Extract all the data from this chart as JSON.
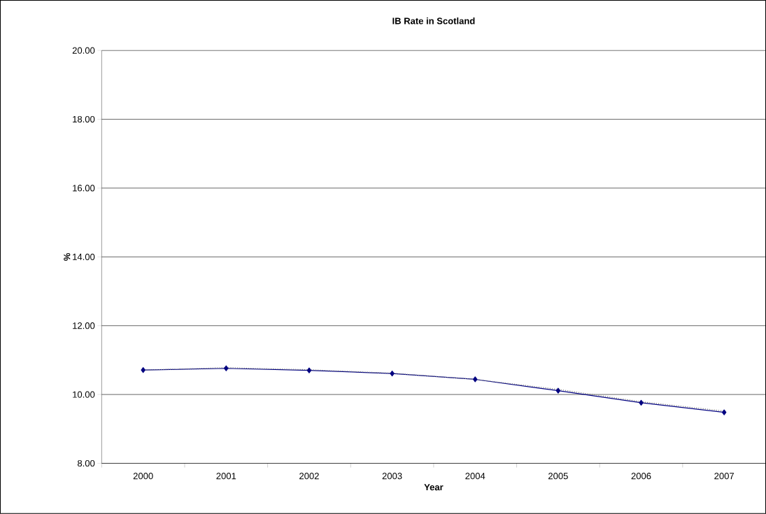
{
  "chart_data": {
    "type": "line",
    "title": "IB Rate in Scotland",
    "xlabel": "Year",
    "ylabel": "%",
    "categories": [
      "2000",
      "2001",
      "2002",
      "2003",
      "2004",
      "2005",
      "2006",
      "2007"
    ],
    "series": [
      {
        "color": "#000080",
        "values": [
          10.71,
          10.76,
          10.7,
          10.61,
          10.44,
          10.11,
          9.76,
          9.48
        ],
        "marker": "diamond",
        "line_style": "solid"
      },
      {
        "color": "#808080",
        "values": [
          10.71,
          10.78,
          10.72,
          10.62,
          10.44,
          10.15,
          9.79,
          9.52
        ],
        "marker": "none",
        "line_style": "dotted"
      }
    ],
    "ylim": [
      8,
      20
    ],
    "yticks": [
      {
        "value": 8,
        "label": "8.00"
      },
      {
        "value": 10,
        "label": "10.00"
      },
      {
        "value": 12,
        "label": "12.00"
      },
      {
        "value": 14,
        "label": "14.00"
      },
      {
        "value": 16,
        "label": "16.00"
      },
      {
        "value": 18,
        "label": "18.00"
      },
      {
        "value": 20,
        "label": "20.00"
      }
    ],
    "grid": "y"
  }
}
